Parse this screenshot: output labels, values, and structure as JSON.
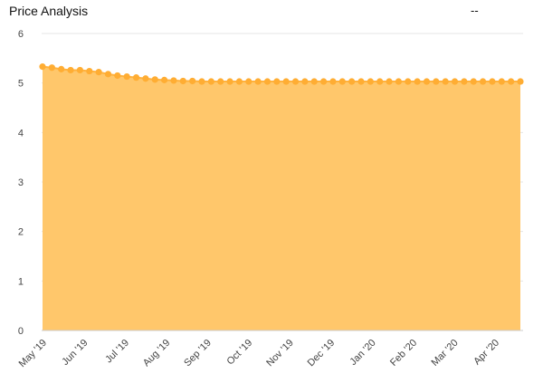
{
  "header": {
    "title": "Price Analysis",
    "status": "--"
  },
  "colors": {
    "area_fill": "#ffc76b",
    "line": "#ffb23f",
    "marker": "#ffad33",
    "grid": "#e6e6e6",
    "axis": "#cccccc"
  },
  "chart_data": {
    "type": "area",
    "title": "Price Analysis",
    "xlabel": "",
    "ylabel": "",
    "ylim": [
      0,
      6
    ],
    "y_ticks": [
      0,
      1,
      2,
      3,
      4,
      5,
      6
    ],
    "grid": true,
    "x_tick_labels": [
      "May '19",
      "Jun '19",
      "Jul '19",
      "Aug '19",
      "Sep '19",
      "Oct '19",
      "Nov '19",
      "Dec '19",
      "Jan '20",
      "Feb '20",
      "Mar '20",
      "Apr '20"
    ],
    "series": [
      {
        "values": [
          5.33,
          5.31,
          5.28,
          5.26,
          5.26,
          5.24,
          5.22,
          5.18,
          5.15,
          5.13,
          5.11,
          5.09,
          5.07,
          5.06,
          5.05,
          5.04,
          5.04,
          5.03,
          5.03,
          5.03,
          5.03,
          5.03,
          5.03,
          5.03,
          5.03,
          5.03,
          5.03,
          5.03,
          5.03,
          5.03,
          5.03,
          5.03,
          5.03,
          5.03,
          5.03,
          5.03,
          5.03,
          5.03,
          5.03,
          5.03,
          5.03,
          5.03,
          5.03,
          5.03,
          5.03,
          5.03,
          5.03,
          5.03,
          5.03,
          5.03,
          5.03,
          5.03
        ]
      }
    ]
  }
}
